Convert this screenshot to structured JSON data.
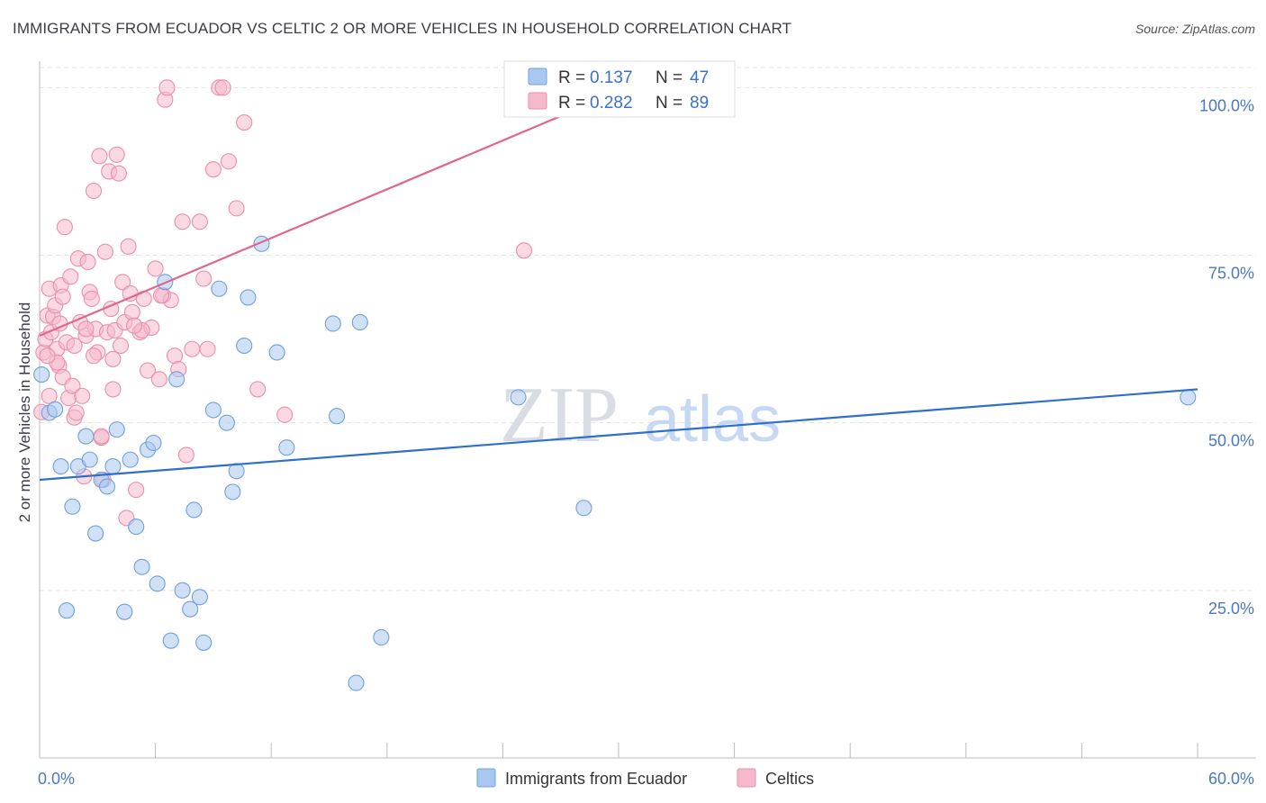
{
  "header": {
    "title": "IMMIGRANTS FROM ECUADOR VS CELTIC 2 OR MORE VEHICLES IN HOUSEHOLD CORRELATION CHART",
    "source": "Source: ZipAtlas.com"
  },
  "watermark": {
    "zip": "ZIP",
    "atlas": "atlas"
  },
  "colors": {
    "blue_fill": "#a9c8ef",
    "blue_stroke": "#6fa0de",
    "blue_line": "#2f6fcc",
    "pink_fill": "#f6b9cc",
    "pink_stroke": "#eb8eab",
    "pink_line": "#e06690",
    "tick_text": "#4a78c4",
    "grid": "#e3e3e8"
  },
  "stats_legend": [
    {
      "r_label": "R =",
      "r_value": "0.137",
      "n_label": "N =",
      "n_value": "47",
      "color": "blue"
    },
    {
      "r_label": "R =",
      "r_value": "0.282",
      "n_label": "N =",
      "n_value": "89",
      "color": "pink"
    }
  ],
  "chart_data": {
    "type": "scatter",
    "title": "IMMIGRANTS FROM ECUADOR VS CELTIC 2 OR MORE VEHICLES IN HOUSEHOLD CORRELATION CHART",
    "xlabel": "",
    "ylabel": "2 or more Vehicles in Household",
    "xlim": [
      0,
      60
    ],
    "ylim": [
      0,
      103
    ],
    "x_tick_labels": [
      {
        "value": 0,
        "label": "0.0%"
      },
      {
        "value": 60,
        "label": "60.0%"
      }
    ],
    "x_minor_ticks": [
      0,
      6,
      12,
      18,
      24,
      30,
      36,
      42,
      48,
      54,
      60
    ],
    "y_ticks": [
      {
        "value": 25,
        "label": "25.0%"
      },
      {
        "value": 50,
        "label": "50.0%"
      },
      {
        "value": 75,
        "label": "75.0%"
      },
      {
        "value": 100,
        "label": "100.0%"
      }
    ],
    "grid": true,
    "legend_position": "bottom-center",
    "series": [
      {
        "name": "Immigrants from Ecuador",
        "color": "blue",
        "trend": {
          "x": [
            0,
            60
          ],
          "y": [
            41.5,
            55
          ]
        },
        "points": [
          [
            0.1,
            57.2
          ],
          [
            0.5,
            51.5
          ],
          [
            0.8,
            52
          ],
          [
            1.1,
            43.5
          ],
          [
            1.4,
            22
          ],
          [
            1.7,
            37.5
          ],
          [
            2,
            43.5
          ],
          [
            2.4,
            48
          ],
          [
            2.6,
            44.5
          ],
          [
            2.9,
            33.5
          ],
          [
            3.2,
            41.5
          ],
          [
            3.5,
            40.5
          ],
          [
            3.8,
            43.5
          ],
          [
            4,
            49
          ],
          [
            4.4,
            21.8
          ],
          [
            4.7,
            44.5
          ],
          [
            5,
            34.5
          ],
          [
            5.3,
            28.5
          ],
          [
            5.6,
            46
          ],
          [
            5.9,
            47
          ],
          [
            6.1,
            26
          ],
          [
            6.5,
            71
          ],
          [
            6.8,
            17.5
          ],
          [
            7.1,
            56.5
          ],
          [
            7.4,
            25
          ],
          [
            7.8,
            22.2
          ],
          [
            8,
            37
          ],
          [
            8.3,
            24
          ],
          [
            8.5,
            17.2
          ],
          [
            9,
            51.9
          ],
          [
            9.3,
            70
          ],
          [
            9.7,
            50
          ],
          [
            10,
            39.7
          ],
          [
            10.2,
            42.8
          ],
          [
            10.6,
            61.5
          ],
          [
            10.8,
            68.7
          ],
          [
            11.5,
            76.7
          ],
          [
            12.3,
            60.5
          ],
          [
            12.8,
            46.3
          ],
          [
            15.2,
            64.8
          ],
          [
            15.4,
            51
          ],
          [
            16.4,
            11.2
          ],
          [
            16.6,
            65
          ],
          [
            17.7,
            18
          ],
          [
            24.8,
            53.8
          ],
          [
            28.2,
            37.3
          ],
          [
            59.5,
            53.8
          ]
        ]
      },
      {
        "name": "Celtics",
        "color": "pink",
        "trend": {
          "x": [
            0,
            30.5
          ],
          "y": [
            63,
            100
          ]
        },
        "points": [
          [
            0.1,
            51.6
          ],
          [
            0.2,
            60.5
          ],
          [
            0.3,
            62.5
          ],
          [
            0.4,
            66
          ],
          [
            0.5,
            70
          ],
          [
            0.6,
            63.5
          ],
          [
            0.7,
            65.8
          ],
          [
            0.8,
            67.5
          ],
          [
            0.9,
            61
          ],
          [
            1,
            58.5
          ],
          [
            1.05,
            64.8
          ],
          [
            1.1,
            70.5
          ],
          [
            1.2,
            56.8
          ],
          [
            1.3,
            79.2
          ],
          [
            1.4,
            62
          ],
          [
            1.5,
            53.7
          ],
          [
            1.6,
            71.8
          ],
          [
            1.7,
            55.5
          ],
          [
            1.8,
            50.8
          ],
          [
            1.9,
            51.5
          ],
          [
            2,
            74.5
          ],
          [
            2.1,
            65
          ],
          [
            2.2,
            54
          ],
          [
            2.3,
            42
          ],
          [
            2.4,
            63
          ],
          [
            2.5,
            74
          ],
          [
            2.6,
            69.5
          ],
          [
            2.7,
            68.5
          ],
          [
            2.8,
            84.6
          ],
          [
            2.9,
            64
          ],
          [
            3,
            60.5
          ],
          [
            3.1,
            89.8
          ],
          [
            3.2,
            47.8
          ],
          [
            3.3,
            41.5
          ],
          [
            3.4,
            75.5
          ],
          [
            3.5,
            63.5
          ],
          [
            3.6,
            87.5
          ],
          [
            3.7,
            67
          ],
          [
            3.8,
            59.5
          ],
          [
            3.9,
            63.8
          ],
          [
            4,
            90
          ],
          [
            4.1,
            87.2
          ],
          [
            4.2,
            61.5
          ],
          [
            4.3,
            71
          ],
          [
            4.4,
            65
          ],
          [
            4.5,
            35.8
          ],
          [
            4.6,
            76.3
          ],
          [
            4.7,
            69.3
          ],
          [
            4.8,
            66.5
          ],
          [
            5,
            40
          ],
          [
            5.2,
            63.5
          ],
          [
            5.4,
            68.5
          ],
          [
            5.6,
            57.8
          ],
          [
            5.8,
            64.2
          ],
          [
            6,
            73
          ],
          [
            6.2,
            56.5
          ],
          [
            6.4,
            69
          ],
          [
            6.5,
            98.2
          ],
          [
            6.6,
            100
          ],
          [
            6.8,
            68.3
          ],
          [
            7,
            60
          ],
          [
            7.2,
            58
          ],
          [
            7.4,
            80
          ],
          [
            7.6,
            45.2
          ],
          [
            8.3,
            80
          ],
          [
            8.5,
            71.5
          ],
          [
            8.7,
            61
          ],
          [
            9,
            87.8
          ],
          [
            9.3,
            100
          ],
          [
            9.5,
            100
          ],
          [
            9.8,
            89
          ],
          [
            10.2,
            82
          ],
          [
            10.6,
            94.8
          ],
          [
            11.3,
            55
          ],
          [
            12.7,
            51.2
          ],
          [
            25.1,
            75.7
          ],
          [
            0.5,
            54
          ],
          [
            0.9,
            59
          ],
          [
            1.2,
            68.8
          ],
          [
            2.4,
            64
          ],
          [
            3.2,
            48
          ],
          [
            5.3,
            63.8
          ],
          [
            6.3,
            69
          ],
          [
            1.8,
            61.5
          ],
          [
            0.4,
            60
          ],
          [
            2.8,
            60
          ],
          [
            3.8,
            55
          ],
          [
            7.9,
            61
          ],
          [
            4.9,
            64.5
          ]
        ]
      }
    ]
  }
}
